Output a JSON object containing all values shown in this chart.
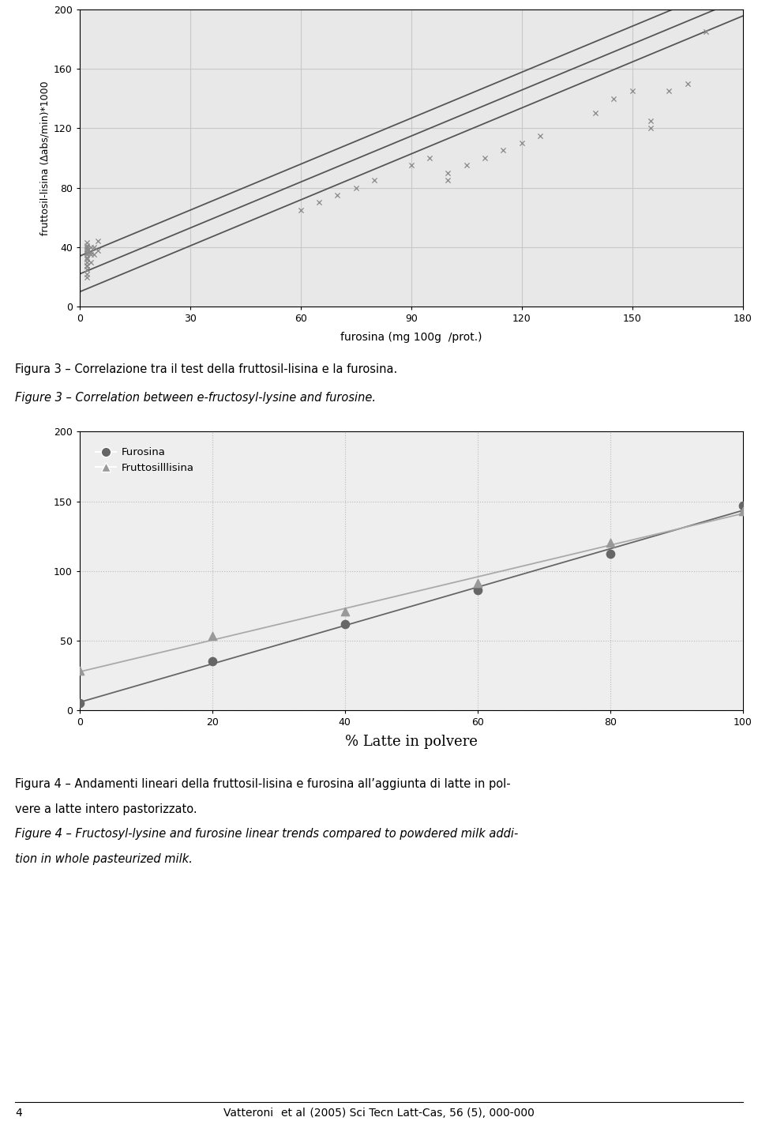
{
  "fig_width": 9.6,
  "fig_height": 14.38,
  "bg_color": "#ffffff",
  "chart1": {
    "xlim": [
      0,
      180
    ],
    "ylim": [
      0,
      200
    ],
    "xticks": [
      0,
      30,
      60,
      90,
      120,
      150,
      180
    ],
    "yticks": [
      0,
      40,
      80,
      120,
      160,
      200
    ],
    "xlabel": "furosina (mg 100g  /prot.)",
    "ylabel": "fruttosil-lisina (∆abs/min)*1000",
    "grid_color": "#c8c8c8",
    "bg_color": "#e8e8e8",
    "scatter_color": "#888888",
    "scatter_x": [
      2,
      2,
      2,
      2,
      2,
      2,
      2,
      2,
      2,
      2,
      2,
      2,
      2,
      2,
      2,
      3,
      3,
      3,
      3,
      4,
      4,
      5,
      5,
      60,
      65,
      70,
      75,
      80,
      90,
      95,
      100,
      100,
      105,
      110,
      115,
      120,
      125,
      140,
      145,
      150,
      155,
      155,
      160,
      165,
      170
    ],
    "scatter_y": [
      20,
      22,
      25,
      27,
      28,
      30,
      32,
      33,
      35,
      36,
      38,
      39,
      40,
      41,
      43,
      30,
      35,
      37,
      40,
      35,
      40,
      38,
      44,
      65,
      70,
      75,
      80,
      85,
      95,
      100,
      85,
      90,
      95,
      100,
      105,
      110,
      115,
      130,
      140,
      145,
      120,
      125,
      145,
      150,
      185
    ],
    "line_intercepts": [
      10,
      22,
      34
    ],
    "line_slope": 1.03,
    "line_color": "#555555",
    "line_width": 1.3
  },
  "chart2": {
    "xlim": [
      0,
      100
    ],
    "ylim": [
      0,
      200
    ],
    "xticks": [
      0,
      20,
      40,
      60,
      80,
      100
    ],
    "yticks": [
      0,
      50,
      100,
      150,
      200
    ],
    "xlabel": "% Latte in polvere",
    "grid_color": "#bbbbbb",
    "bg_color": "#eeeeee",
    "furosina_x": [
      0,
      20,
      40,
      60,
      80,
      100
    ],
    "furosina_y": [
      5,
      35,
      62,
      86,
      112,
      147
    ],
    "fruttosilisina_x": [
      0,
      20,
      40,
      60,
      80,
      100
    ],
    "fruttosilisina_y": [
      28,
      53,
      71,
      91,
      120,
      143
    ],
    "furosina_color": "#666666",
    "fruttosilisina_color": "#999999",
    "line_color_furosina": "#666666",
    "line_color_fruttosilisina": "#aaaaaa",
    "legend_furosina": "Furosina",
    "legend_fruttosilisina": "Fruttosilllisina"
  },
  "caption1_it": "Figura 3 – Correlazione tra il test della fruttosil-lisina e la furosina.",
  "caption1_en": "Figure 3 – Correlation between e-fructosyl-lysine and furosine.",
  "caption2_it_line1": "Figura 4 – Andamenti lineari della fruttosil-lisina e furosina all’aggiunta di latte in pol-",
  "caption2_it_line2": "vere a latte intero pastorizzato.",
  "caption2_en_line1": "Figure 4 – Fructosyl-lysine and furosine linear trends compared to powdered milk addi-",
  "caption2_en_line2": "tion in whole pasteurized milk.",
  "footer_text": "Vatteroni ",
  "footer_etal": "et al",
  "footer_rest": " (2005) Sci Tecn Latt-Cas, ",
  "footer_vol": "56",
  "footer_end": " (5), 000-000",
  "footer_page": "4"
}
